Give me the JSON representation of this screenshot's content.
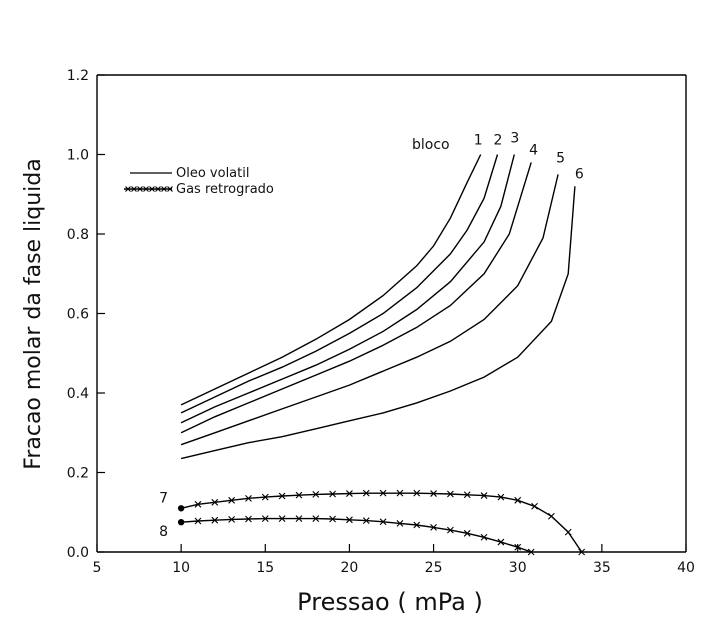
{
  "chart_data": {
    "type": "line",
    "xlabel": "Pressao ( mPa )",
    "ylabel": "Fracao molar da fase liquida",
    "xlim": [
      5,
      40
    ],
    "ylim": [
      0.0,
      1.2
    ],
    "xticks": [
      "5",
      "10",
      "15",
      "20",
      "25",
      "30",
      "35",
      "40"
    ],
    "yticks": [
      "0.0",
      "0.2",
      "0.4",
      "0.6",
      "0.8",
      "1.0",
      "1.2"
    ],
    "legend": {
      "position": "upper-left",
      "entries": [
        {
          "label": "Oleo volatil",
          "style": "line"
        },
        {
          "label": "Gas retrogrado",
          "style": "line-with-markers"
        }
      ]
    },
    "annotation": "bloco",
    "series": [
      {
        "name": "1",
        "group": "Oleo volatil",
        "x": [
          10,
          12,
          14,
          16,
          18,
          20,
          22,
          24,
          25,
          26,
          27,
          27.8
        ],
        "y": [
          0.37,
          0.41,
          0.45,
          0.49,
          0.535,
          0.585,
          0.645,
          0.72,
          0.77,
          0.84,
          0.93,
          1.0
        ]
      },
      {
        "name": "2",
        "group": "Oleo volatil",
        "x": [
          10,
          12,
          14,
          16,
          18,
          20,
          22,
          24,
          26,
          27,
          28,
          28.8
        ],
        "y": [
          0.35,
          0.39,
          0.43,
          0.465,
          0.505,
          0.55,
          0.6,
          0.665,
          0.75,
          0.81,
          0.89,
          1.0
        ]
      },
      {
        "name": "3",
        "group": "Oleo volatil",
        "x": [
          10,
          12,
          14,
          16,
          18,
          20,
          22,
          24,
          26,
          28,
          29,
          29.8
        ],
        "y": [
          0.325,
          0.365,
          0.4,
          0.435,
          0.47,
          0.51,
          0.555,
          0.61,
          0.68,
          0.78,
          0.87,
          1.0
        ]
      },
      {
        "name": "4",
        "group": "Oleo volatil",
        "x": [
          10,
          12,
          14,
          16,
          18,
          20,
          22,
          24,
          26,
          28,
          29.5,
          30.8
        ],
        "y": [
          0.3,
          0.34,
          0.375,
          0.41,
          0.445,
          0.48,
          0.52,
          0.565,
          0.62,
          0.7,
          0.8,
          0.98
        ]
      },
      {
        "name": "5",
        "group": "Oleo volatil",
        "x": [
          10,
          12,
          14,
          16,
          18,
          20,
          22,
          24,
          26,
          28,
          30,
          31.5,
          32.4
        ],
        "y": [
          0.27,
          0.3,
          0.33,
          0.36,
          0.39,
          0.42,
          0.455,
          0.49,
          0.53,
          0.585,
          0.67,
          0.79,
          0.95
        ]
      },
      {
        "name": "6",
        "group": "Oleo volatil",
        "x": [
          10,
          12,
          14,
          16,
          18,
          20,
          22,
          24,
          26,
          28,
          30,
          32,
          33.0,
          33.4
        ],
        "y": [
          0.235,
          0.255,
          0.275,
          0.29,
          0.31,
          0.33,
          0.35,
          0.375,
          0.405,
          0.44,
          0.49,
          0.58,
          0.7,
          0.92
        ]
      },
      {
        "name": "7",
        "group": "Gas retrogrado",
        "x": [
          10,
          11,
          12,
          13,
          14,
          15,
          16,
          17,
          18,
          19,
          20,
          21,
          22,
          23,
          24,
          25,
          26,
          27,
          28,
          29,
          30,
          31,
          32,
          33,
          33.8
        ],
        "y": [
          0.11,
          0.12,
          0.125,
          0.13,
          0.135,
          0.138,
          0.141,
          0.143,
          0.145,
          0.146,
          0.147,
          0.148,
          0.148,
          0.148,
          0.148,
          0.147,
          0.146,
          0.144,
          0.142,
          0.138,
          0.13,
          0.115,
          0.09,
          0.05,
          0.0
        ]
      },
      {
        "name": "8",
        "group": "Gas retrogrado",
        "x": [
          10,
          11,
          12,
          13,
          14,
          15,
          16,
          17,
          18,
          19,
          20,
          21,
          22,
          23,
          24,
          25,
          26,
          27,
          28,
          29,
          30,
          30.8
        ],
        "y": [
          0.075,
          0.078,
          0.08,
          0.082,
          0.083,
          0.084,
          0.084,
          0.084,
          0.084,
          0.083,
          0.081,
          0.079,
          0.076,
          0.072,
          0.068,
          0.062,
          0.055,
          0.047,
          0.037,
          0.025,
          0.012,
          0.0
        ]
      }
    ]
  }
}
